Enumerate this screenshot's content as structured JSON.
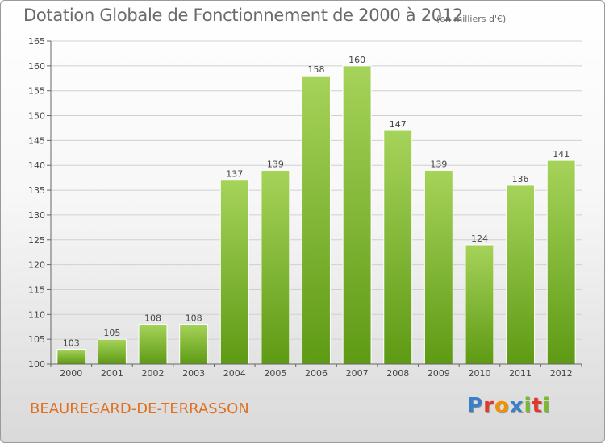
{
  "header": {
    "title": "Dotation Globale de Fonctionnement de 2000 à 2012",
    "unit": "(en milliers d'€)"
  },
  "footer": {
    "commune": "BEAUREGARD-DE-TERRASSON",
    "logo_letters": [
      "P",
      "r",
      "o",
      "x",
      "i",
      "t",
      "i"
    ],
    "logo_colors": [
      "#3a7fc8",
      "#e0392b",
      "#f29200",
      "#3a7fc8",
      "#7ab92f",
      "#e0392b",
      "#7ab92f"
    ]
  },
  "colors": {
    "bar_light": "#a6d35a",
    "bar_dark": "#5e9a14",
    "grid": "#d0d0d0",
    "axis": "#666666"
  },
  "chart_data": {
    "type": "bar",
    "title": "Dotation Globale de Fonctionnement de 2000 à 2012",
    "subtitle": "(en milliers d'€)",
    "categories": [
      "2000",
      "2001",
      "2002",
      "2003",
      "2004",
      "2005",
      "2006",
      "2007",
      "2008",
      "2009",
      "2010",
      "2011",
      "2012"
    ],
    "values": [
      103,
      105,
      108,
      108,
      137,
      139,
      158,
      160,
      147,
      139,
      124,
      136,
      141
    ],
    "ylim": [
      100,
      165
    ],
    "yticks": [
      100,
      105,
      110,
      115,
      120,
      125,
      130,
      135,
      140,
      145,
      150,
      155,
      160,
      165
    ],
    "xlabel": "",
    "ylabel": "",
    "grid": true,
    "data_labels": true
  }
}
